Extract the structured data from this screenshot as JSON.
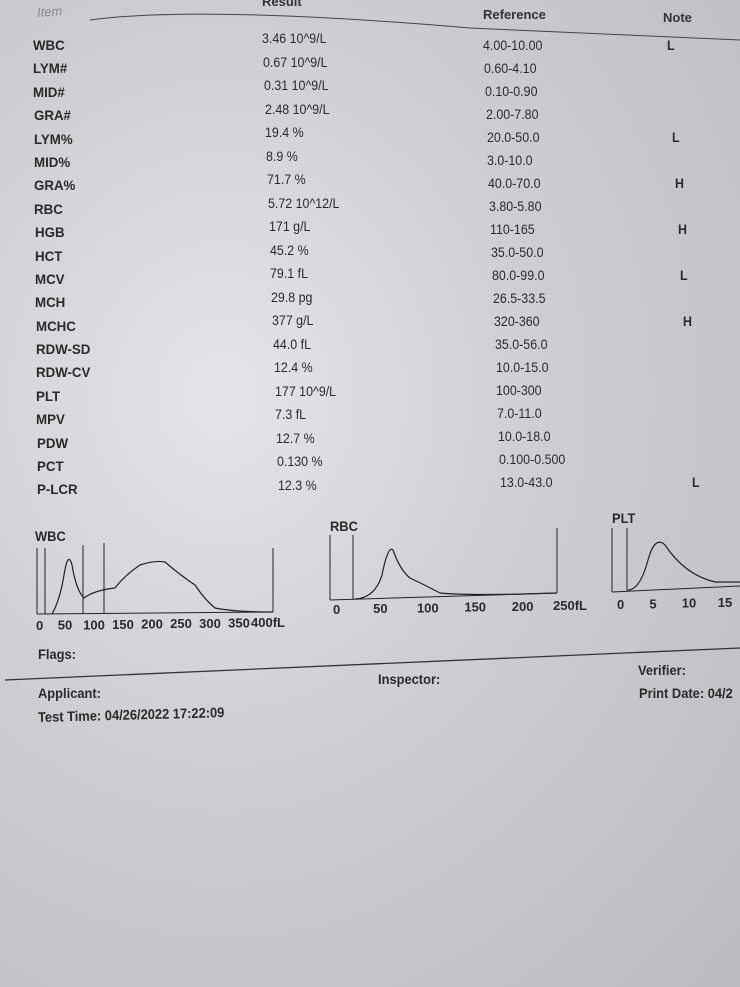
{
  "header": {
    "item": "Item",
    "result": "Result",
    "reference": "Reference",
    "note": "Note"
  },
  "rows": [
    {
      "item": "WBC",
      "result": "3.46 10^9/L",
      "reference": "4.00-10.00",
      "note": "L"
    },
    {
      "item": "LYM#",
      "result": "0.67 10^9/L",
      "reference": "0.60-4.10",
      "note": ""
    },
    {
      "item": "MID#",
      "result": "0.31 10^9/L",
      "reference": "0.10-0.90",
      "note": ""
    },
    {
      "item": "GRA#",
      "result": "2.48 10^9/L",
      "reference": "2.00-7.80",
      "note": ""
    },
    {
      "item": "LYM%",
      "result": "19.4 %",
      "reference": "20.0-50.0",
      "note": "L"
    },
    {
      "item": "MID%",
      "result": "8.9 %",
      "reference": "3.0-10.0",
      "note": ""
    },
    {
      "item": "GRA%",
      "result": "71.7 %",
      "reference": "40.0-70.0",
      "note": "H"
    },
    {
      "item": "RBC",
      "result": "5.72 10^12/L",
      "reference": "3.80-5.80",
      "note": ""
    },
    {
      "item": "HGB",
      "result": "171 g/L",
      "reference": "110-165",
      "note": "H"
    },
    {
      "item": "HCT",
      "result": "45.2 %",
      "reference": "35.0-50.0",
      "note": ""
    },
    {
      "item": "MCV",
      "result": "79.1 fL",
      "reference": "80.0-99.0",
      "note": "L"
    },
    {
      "item": "MCH",
      "result": "29.8 pg",
      "reference": "26.5-33.5",
      "note": ""
    },
    {
      "item": "MCHC",
      "result": "377 g/L",
      "reference": "320-360",
      "note": "H"
    },
    {
      "item": "RDW-SD",
      "result": "44.0 fL",
      "reference": "35.0-56.0",
      "note": ""
    },
    {
      "item": "RDW-CV",
      "result": "12.4 %",
      "reference": "10.0-15.0",
      "note": ""
    },
    {
      "item": "PLT",
      "result": "177 10^9/L",
      "reference": "100-300",
      "note": ""
    },
    {
      "item": "MPV",
      "result": "7.3 fL",
      "reference": "7.0-11.0",
      "note": ""
    },
    {
      "item": "PDW",
      "result": "12.7 %",
      "reference": "10.0-18.0",
      "note": ""
    },
    {
      "item": "PCT",
      "result": "0.130 %",
      "reference": "0.100-0.500",
      "note": ""
    },
    {
      "item": "P-LCR",
      "result": "12.3 %",
      "reference": "13.0-43.0",
      "note": "L"
    }
  ],
  "histograms": {
    "wbc": {
      "title": "WBC",
      "ticks": [
        "0",
        "50",
        "100",
        "150",
        "200",
        "250",
        "300",
        "350",
        "400fL"
      ]
    },
    "rbc": {
      "title": "RBC",
      "ticks": [
        "0",
        "50",
        "100",
        "150",
        "200",
        "250fL"
      ]
    },
    "plt": {
      "title": "PLT",
      "ticks": [
        "0",
        "5",
        "10",
        "15"
      ]
    }
  },
  "footer": {
    "flags": "Flags:",
    "applicant": "Applicant:",
    "inspector": "Inspector:",
    "verifier": "Verifier:",
    "print_date": "Print Date: 04/2",
    "test_time": "Test Time: 04/26/2022 17:22:09"
  }
}
